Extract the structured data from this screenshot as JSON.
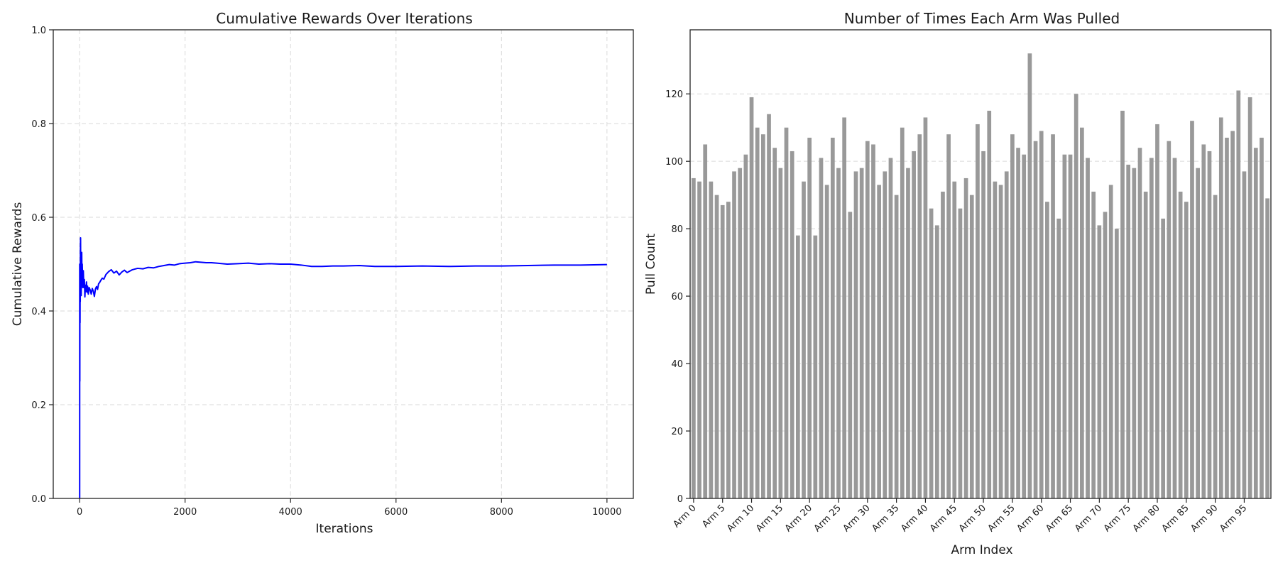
{
  "chart_data": [
    {
      "type": "line",
      "title": "Cumulative Rewards Over Iterations",
      "xlabel": "Iterations",
      "ylabel": "Cumulative Rewards",
      "xlim": [
        -500,
        10500
      ],
      "ylim": [
        0.0,
        1.0
      ],
      "xticks": [
        0,
        2000,
        4000,
        6000,
        8000,
        10000
      ],
      "yticks": [
        0.0,
        0.2,
        0.4,
        0.6,
        0.8,
        1.0
      ],
      "ytick_labels": [
        "0.0",
        "0.2",
        "0.4",
        "0.6",
        "0.8",
        "1.0"
      ],
      "grid": true,
      "series": [
        {
          "name": "cumulative reward",
          "color": "#0000ff",
          "x": [
            1,
            2,
            3,
            4,
            5,
            6,
            8,
            10,
            12,
            15,
            18,
            20,
            25,
            30,
            35,
            40,
            45,
            50,
            55,
            60,
            70,
            80,
            90,
            100,
            110,
            120,
            130,
            140,
            150,
            165,
            180,
            200,
            220,
            240,
            260,
            280,
            300,
            320,
            340,
            360,
            380,
            400,
            430,
            460,
            500,
            550,
            600,
            650,
            700,
            750,
            800,
            850,
            900,
            1000,
            1100,
            1200,
            1300,
            1400,
            1500,
            1600,
            1700,
            1800,
            1900,
            2000,
            2100,
            2200,
            2300,
            2400,
            2500,
            2600,
            2800,
            3000,
            3200,
            3400,
            3600,
            3800,
            4000,
            4200,
            4400,
            4600,
            4800,
            5000,
            5300,
            5600,
            6000,
            6500,
            7000,
            7500,
            8000,
            8500,
            9000,
            9500,
            10000
          ],
          "y": [
            0.0,
            0.5,
            0.333,
            0.25,
            0.4,
            0.5,
            0.375,
            0.5,
            0.42,
            0.53,
            0.556,
            0.5,
            0.52,
            0.433,
            0.486,
            0.525,
            0.467,
            0.5,
            0.473,
            0.45,
            0.486,
            0.45,
            0.467,
            0.43,
            0.455,
            0.442,
            0.462,
            0.44,
            0.453,
            0.436,
            0.45,
            0.445,
            0.436,
            0.448,
            0.442,
            0.431,
            0.447,
            0.452,
            0.446,
            0.458,
            0.461,
            0.465,
            0.47,
            0.468,
            0.478,
            0.484,
            0.488,
            0.481,
            0.485,
            0.477,
            0.483,
            0.487,
            0.482,
            0.488,
            0.491,
            0.49,
            0.493,
            0.492,
            0.495,
            0.497,
            0.499,
            0.498,
            0.501,
            0.502,
            0.503,
            0.505,
            0.504,
            0.503,
            0.503,
            0.502,
            0.5,
            0.501,
            0.502,
            0.5,
            0.501,
            0.5,
            0.5,
            0.498,
            0.495,
            0.495,
            0.496,
            0.496,
            0.497,
            0.495,
            0.495,
            0.496,
            0.495,
            0.496,
            0.496,
            0.497,
            0.498,
            0.498,
            0.499
          ]
        }
      ]
    },
    {
      "type": "bar",
      "title": "Number of Times Each Arm Was Pulled",
      "xlabel": "Arm Index",
      "ylabel": "Pull Count",
      "ylim": [
        0,
        139
      ],
      "yticks": [
        0,
        20,
        40,
        60,
        80,
        100,
        120
      ],
      "xtick_labels": [
        "Arm 0",
        "Arm 5",
        "Arm 10",
        "Arm 15",
        "Arm 20",
        "Arm 25",
        "Arm 30",
        "Arm 35",
        "Arm 40",
        "Arm 45",
        "Arm 50",
        "Arm 55",
        "Arm 60",
        "Arm 65",
        "Arm 70",
        "Arm 75",
        "Arm 80",
        "Arm 85",
        "Arm 90",
        "Arm 95"
      ],
      "grid": true,
      "bar_color": "#999999",
      "values": [
        95,
        94,
        105,
        94,
        90,
        87,
        88,
        97,
        98,
        102,
        119,
        110,
        108,
        114,
        104,
        98,
        110,
        103,
        78,
        94,
        107,
        78,
        101,
        93,
        107,
        98,
        113,
        85,
        97,
        98,
        106,
        105,
        93,
        97,
        101,
        90,
        110,
        98,
        103,
        108,
        113,
        86,
        81,
        91,
        108,
        94,
        86,
        95,
        90,
        111,
        103,
        115,
        94,
        93,
        97,
        108,
        104,
        102,
        132,
        106,
        109,
        88,
        108,
        83,
        102,
        102,
        120,
        110,
        101,
        91,
        81,
        85,
        93,
        80,
        115,
        99,
        98,
        104,
        91,
        101,
        111,
        83,
        106,
        101,
        91,
        88,
        112,
        98,
        105,
        103,
        90,
        113,
        107,
        109,
        121,
        97,
        119,
        104,
        107,
        89
      ]
    }
  ]
}
